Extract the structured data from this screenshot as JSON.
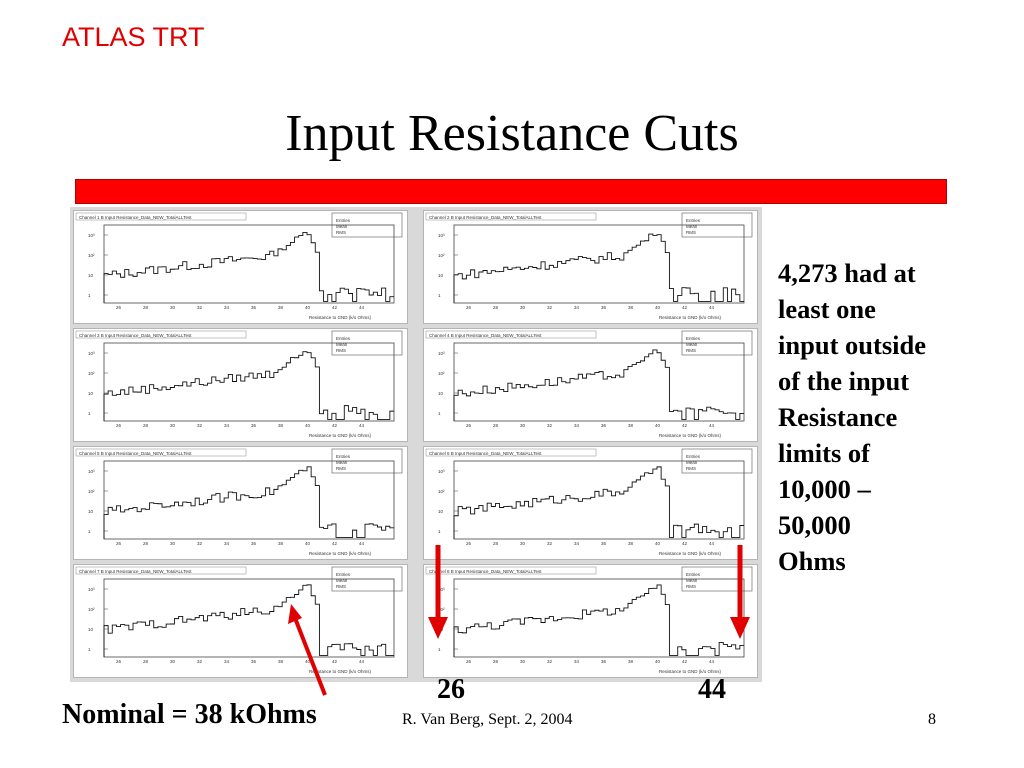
{
  "header": "ATLAS TRT",
  "title": "Input Resistance Cuts",
  "side_text": [
    "4,273 had at",
    "least one",
    "input outside",
    "of the input",
    "Resistance",
    "limits of",
    "10,000 –",
    "50,000",
    "Ohms"
  ],
  "annotations": {
    "left_number": "26",
    "right_number": "44",
    "nominal": "Nominal = 38 kOhms"
  },
  "footer": {
    "author_date": "R. Van Berg, Sept. 2, 2004",
    "page": "8"
  },
  "colors": {
    "accent": "#ff0000",
    "header": "#e00000"
  },
  "histograms": [
    {
      "title": "Channel 1 B Input Resistance_Data_NEW_TotalALLTest"
    },
    {
      "title": "Channel 2 B Input Resistance_Data_NEW_TotalALLTest"
    },
    {
      "title": "Channel 3 B Input Resistance_Data_NEW_TotalALLTest"
    },
    {
      "title": "Channel 4 B Input Resistance_Data_NEW_TotalALLTest"
    },
    {
      "title": "Channel 5 B Input Resistance_Data_NEW_TotalALLTest"
    },
    {
      "title": "Channel 6 B Input Resistance_Data_NEW_TotalALLTest"
    },
    {
      "title": "Channel 7 B Input Resistance_Data_NEW_TotalALLTest"
    },
    {
      "title": "Channel 8 B Input Resistance_Data_NEW_TotalALLTest"
    }
  ],
  "histogram_common": {
    "xlabel": "Resistance to GND (k/o Ohms)",
    "stat_labels": [
      "Entries",
      "Mean",
      "RMS"
    ],
    "x_ticks": [
      "26",
      "28",
      "30",
      "32",
      "34",
      "36",
      "38",
      "40",
      "42",
      "44"
    ],
    "y_ticks": [
      "10³",
      "10²",
      "10",
      "1"
    ]
  }
}
